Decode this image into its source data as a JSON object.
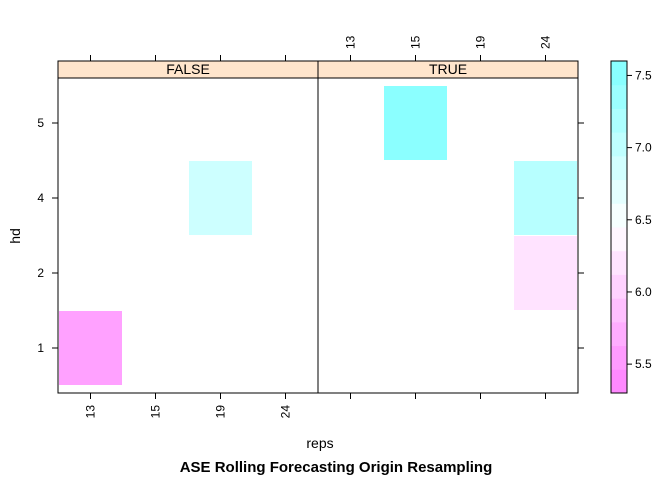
{
  "chart_data": {
    "type": "heatmap",
    "title": "ASE Rolling Forecasting Origin Resampling",
    "xlabel": "reps",
    "ylabel": "hd",
    "x_categories": [
      "13",
      "15",
      "19",
      "24"
    ],
    "y_categories": [
      "1",
      "2",
      "4",
      "5"
    ],
    "panels": [
      "FALSE",
      "TRUE"
    ],
    "cells": [
      {
        "panel": "FALSE",
        "x": "13",
        "y": "1",
        "value": 5.6
      },
      {
        "panel": "FALSE",
        "x": "19",
        "y": "4",
        "value": 6.9
      },
      {
        "panel": "TRUE",
        "x": "15",
        "y": "5",
        "value": 7.5
      },
      {
        "panel": "TRUE",
        "x": "24",
        "y": "4",
        "value": 7.1
      },
      {
        "panel": "TRUE",
        "x": "24",
        "y": "2",
        "value": 6.2
      }
    ],
    "colorkey": {
      "min": 5.3,
      "max": 7.6,
      "ticks": [
        5.5,
        6.0,
        6.5,
        7.0,
        7.5
      ],
      "tick_labels": [
        "5.5",
        "6.0",
        "6.5",
        "7.0",
        "7.5"
      ],
      "low_color": "#ff80ff",
      "high_color": "#80ffff"
    },
    "strip_color": "#ffe5cc",
    "grid": false,
    "legend": "right"
  }
}
